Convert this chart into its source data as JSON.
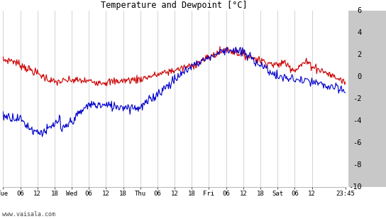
{
  "title": "Temperature and Dewpoint [°C]",
  "ylim": [
    -10,
    6
  ],
  "yticks": [
    -10,
    -8,
    -6,
    -4,
    -2,
    0,
    2,
    4,
    6
  ],
  "x_tick_positions": [
    0,
    6,
    12,
    18,
    24,
    30,
    36,
    42,
    48,
    54,
    60,
    66,
    72,
    78,
    84,
    90,
    96,
    102,
    108,
    119.75
  ],
  "x_tick_labels": [
    "Tue",
    "06",
    "12",
    "18",
    "Wed",
    "06",
    "12",
    "18",
    "Thu",
    "06",
    "12",
    "18",
    "Fri",
    "06",
    "12",
    "18",
    "Sat",
    "06",
    "12",
    "23:45"
  ],
  "watermark": "www.vaisala.com",
  "bg_color": "#ffffff",
  "grid_color": "#cccccc",
  "right_panel_color": "#c8c8c8",
  "temp_color": "#cc0000",
  "dewp_color": "#0000cc",
  "title_font": "monospace",
  "n_points": 500,
  "xlim_max": 119.75
}
